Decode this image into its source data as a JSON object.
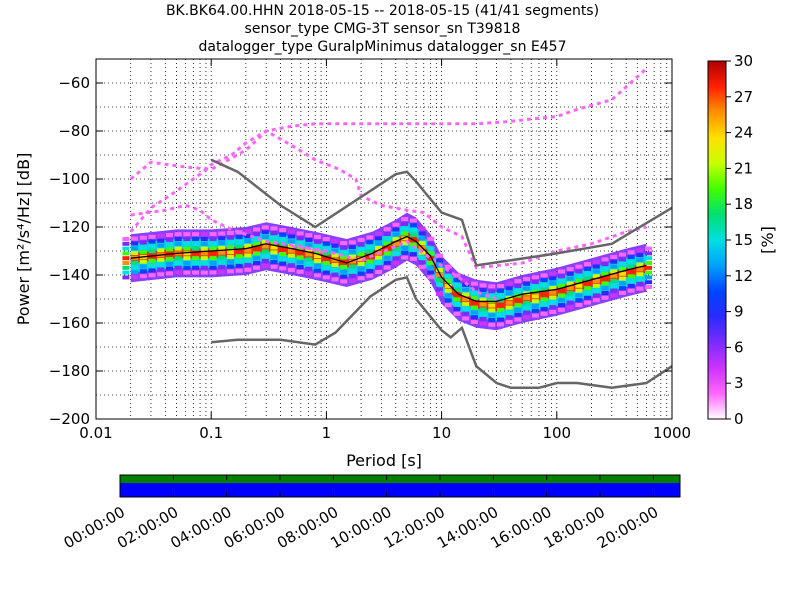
{
  "header": {
    "title_lines": [
      "BK.BK64.00.HHN   2018-05-15 -- 2018-05-15  (41/41 segments)",
      "sensor_type CMG-3T sensor_sn T39818",
      "datalogger_type GuralpMinimus datalogger_sn E457"
    ]
  },
  "colors": {
    "density_colormap": [
      "#ffffff",
      "#ff66ff",
      "#cc33ff",
      "#7a2cff",
      "#2a2aff",
      "#0044ff",
      "#00a0ff",
      "#00e0e0",
      "#00e070",
      "#40ff00",
      "#c8ff00",
      "#ffe000",
      "#ff9000",
      "#ff2000",
      "#b00000"
    ],
    "noise_model": "#666666",
    "coverage_green": "#008000",
    "coverage_blue": "#0000ff"
  },
  "chart_data": [
    {
      "type": "heatmap",
      "chart": "probabilistic_psd",
      "xlabel": "Period [s]",
      "ylabel": "Power [m²/s⁴/Hz] [dB]",
      "xscale": "log",
      "xlim": [
        0.01,
        1000
      ],
      "ylim": [
        -200,
        -50
      ],
      "x_ticks": [
        {
          "value": 0.01,
          "label": "0.01"
        },
        {
          "value": 0.1,
          "label": "0.1"
        },
        {
          "value": 1,
          "label": "1"
        },
        {
          "value": 10,
          "label": "10"
        },
        {
          "value": 100,
          "label": "100"
        },
        {
          "value": 1000,
          "label": "1000"
        }
      ],
      "y_ticks": [
        -60,
        -80,
        -100,
        -120,
        -140,
        -160,
        -180,
        -200
      ],
      "colorbar": {
        "label": "[%]",
        "range": [
          0,
          30
        ],
        "ticks": [
          0,
          3,
          6,
          9,
          12,
          15,
          18,
          21,
          24,
          27,
          30
        ]
      },
      "noise_models": [
        {
          "points": [
            [
              0.1,
              -92
            ],
            [
              0.17,
              -97
            ],
            [
              0.4,
              -111
            ],
            [
              0.8,
              -120
            ],
            [
              4,
              -98
            ],
            [
              5,
              -97
            ],
            [
              6,
              -101
            ],
            [
              7,
              -105
            ],
            [
              10,
              -114
            ],
            [
              15,
              -117
            ],
            [
              20,
              -136
            ],
            [
              100,
              -131
            ],
            [
              300,
              -127
            ],
            [
              1000,
              -112
            ]
          ]
        },
        {
          "points": [
            [
              0.1,
              -168
            ],
            [
              0.17,
              -167
            ],
            [
              0.4,
              -167
            ],
            [
              0.8,
              -169
            ],
            [
              1.2,
              -164
            ],
            [
              2.4,
              -149
            ],
            [
              4,
              -142
            ],
            [
              5,
              -141
            ],
            [
              6,
              -150
            ],
            [
              10,
              -163
            ],
            [
              12,
              -166
            ],
            [
              15,
              -162
            ],
            [
              20,
              -178
            ],
            [
              30,
              -185
            ],
            [
              40,
              -187
            ],
            [
              70,
              -187
            ],
            [
              100,
              -185
            ],
            [
              150,
              -185
            ],
            [
              300,
              -187
            ],
            [
              600,
              -185
            ],
            [
              1000,
              -178
            ]
          ]
        }
      ],
      "mode_curve": {
        "points": [
          [
            0.02,
            -133
          ],
          [
            0.05,
            -131
          ],
          [
            0.1,
            -130
          ],
          [
            0.2,
            -129
          ],
          [
            0.3,
            -127
          ],
          [
            0.5,
            -129
          ],
          [
            0.8,
            -131
          ],
          [
            1.5,
            -135
          ],
          [
            2.5,
            -131
          ],
          [
            4,
            -126
          ],
          [
            5,
            -124
          ],
          [
            6,
            -126
          ],
          [
            8,
            -132
          ],
          [
            10,
            -141
          ],
          [
            14,
            -148
          ],
          [
            20,
            -151
          ],
          [
            30,
            -151
          ],
          [
            50,
            -148
          ],
          [
            100,
            -146
          ],
          [
            200,
            -142
          ],
          [
            400,
            -138
          ],
          [
            600,
            -136
          ]
        ]
      },
      "density_bands": [
        {
          "center": [
            [
              0.02,
              -133
            ],
            [
              0.05,
              -131
            ],
            [
              0.1,
              -131
            ],
            [
              0.2,
              -130
            ],
            [
              0.3,
              -128
            ],
            [
              0.5,
              -130
            ],
            [
              0.8,
              -132
            ],
            [
              1.5,
              -135
            ],
            [
              2.5,
              -132
            ],
            [
              4,
              -127
            ],
            [
              5,
              -124
            ],
            [
              6,
              -126
            ],
            [
              8,
              -133
            ],
            [
              10,
              -142
            ],
            [
              14,
              -149
            ],
            [
              20,
              -152
            ],
            [
              30,
              -153
            ],
            [
              50,
              -150
            ],
            [
              100,
              -147
            ],
            [
              200,
              -143
            ],
            [
              400,
              -139
            ],
            [
              600,
              -137
            ]
          ],
          "width_db": 2,
          "percent": 27
        },
        {
          "center": [
            [
              0.02,
              -133
            ],
            [
              0.05,
              -131
            ],
            [
              0.1,
              -131
            ],
            [
              0.2,
              -130
            ],
            [
              0.3,
              -128
            ],
            [
              0.5,
              -130
            ],
            [
              0.8,
              -132
            ],
            [
              1.5,
              -135
            ],
            [
              2.5,
              -132
            ],
            [
              4,
              -127
            ],
            [
              5,
              -124
            ],
            [
              6,
              -126
            ],
            [
              8,
              -133
            ],
            [
              10,
              -142
            ],
            [
              14,
              -149
            ],
            [
              20,
              -152
            ],
            [
              30,
              -153
            ],
            [
              50,
              -150
            ],
            [
              100,
              -147
            ],
            [
              200,
              -143
            ],
            [
              400,
              -139
            ],
            [
              600,
              -137
            ]
          ],
          "width_db": 6,
          "percent": 15
        },
        {
          "center": [
            [
              0.02,
              -133
            ],
            [
              0.05,
              -131
            ],
            [
              0.1,
              -131
            ],
            [
              0.2,
              -130
            ],
            [
              0.3,
              -128
            ],
            [
              0.5,
              -130
            ],
            [
              0.8,
              -132
            ],
            [
              1.5,
              -135
            ],
            [
              2.5,
              -132
            ],
            [
              4,
              -127
            ],
            [
              5,
              -124
            ],
            [
              6,
              -126
            ],
            [
              8,
              -133
            ],
            [
              10,
              -142
            ],
            [
              14,
              -149
            ],
            [
              20,
              -152
            ],
            [
              30,
              -153
            ],
            [
              50,
              -150
            ],
            [
              100,
              -147
            ],
            [
              200,
              -143
            ],
            [
              400,
              -139
            ],
            [
              600,
              -137
            ]
          ],
          "width_db": 10,
          "percent": 6
        }
      ],
      "sparse_traces": [
        {
          "points": [
            [
              0.02,
              -122
            ],
            [
              0.03,
              -112
            ],
            [
              0.05,
              -105
            ],
            [
              0.08,
              -98
            ],
            [
              0.1,
              -94
            ],
            [
              0.15,
              -90
            ],
            [
              0.2,
              -85
            ],
            [
              0.3,
              -80
            ],
            [
              0.5,
              -78
            ],
            [
              0.8,
              -77
            ],
            [
              2,
              -77
            ],
            [
              10,
              -77
            ],
            [
              20,
              -77
            ],
            [
              40,
              -76
            ],
            [
              60,
              -75
            ],
            [
              100,
              -74
            ],
            [
              150,
              -71
            ],
            [
              300,
              -67
            ],
            [
              600,
              -54
            ]
          ],
          "percent": 3
        },
        {
          "points": [
            [
              0.02,
              -100
            ],
            [
              0.03,
              -93
            ],
            [
              0.06,
              -95
            ],
            [
              0.1,
              -96
            ],
            [
              0.2,
              -88
            ],
            [
              0.3,
              -80
            ],
            [
              0.5,
              -86
            ],
            [
              0.8,
              -92
            ],
            [
              1.3,
              -96
            ],
            [
              1.8,
              -100
            ],
            [
              2,
              -107
            ],
            [
              3,
              -111
            ],
            [
              5,
              -113
            ],
            [
              7,
              -114
            ],
            [
              10,
              -120
            ],
            [
              15,
              -124
            ],
            [
              20,
              -137
            ],
            [
              50,
              -135
            ],
            [
              100,
              -130
            ],
            [
              200,
              -127
            ],
            [
              400,
              -122
            ],
            [
              600,
              -120
            ]
          ],
          "percent": 2
        },
        {
          "points": [
            [
              0.02,
              -115
            ],
            [
              0.04,
              -113
            ],
            [
              0.06,
              -111
            ],
            [
              0.08,
              -113
            ],
            [
              0.1,
              -117
            ],
            [
              0.15,
              -121
            ],
            [
              0.3,
              -126
            ],
            [
              0.6,
              -128
            ],
            [
              1,
              -131
            ]
          ],
          "percent": 2
        },
        {
          "points": [
            [
              0.5,
              -128
            ],
            [
              1,
              -130
            ],
            [
              2,
              -134
            ],
            [
              4,
              -128
            ],
            [
              5,
              -126
            ],
            [
              8,
              -133
            ],
            [
              15,
              -142
            ],
            [
              20,
              -147
            ],
            [
              30,
              -150
            ]
          ],
          "percent": 2
        }
      ]
    },
    {
      "type": "bar",
      "chart": "data_coverage",
      "x_ticks": [
        "00:00:00",
        "02:00:00",
        "04:00:00",
        "06:00:00",
        "08:00:00",
        "10:00:00",
        "12:00:00",
        "14:00:00",
        "16:00:00",
        "18:00:00",
        "20:00:00"
      ],
      "x_range_hours": [
        0,
        21
      ],
      "series": [
        {
          "start_hours": 0,
          "end_hours": 21,
          "color": "green"
        },
        {
          "start_hours": 0,
          "end_hours": 21,
          "color": "blue"
        }
      ]
    }
  ]
}
